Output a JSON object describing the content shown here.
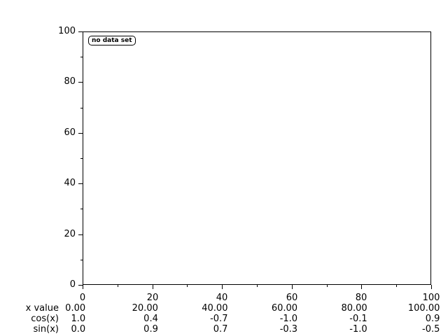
{
  "colors": {
    "background": "#ffffff",
    "foreground": "#000000"
  },
  "chart_data": {
    "type": "line",
    "title": "",
    "legend": "no data set",
    "legend_position": "top-left-inside",
    "grid": false,
    "xlim": [
      0,
      100
    ],
    "ylim": [
      0,
      100
    ],
    "x_ticks": [
      0,
      20,
      40,
      60,
      80,
      100
    ],
    "y_ticks": [
      0,
      20,
      40,
      60,
      80,
      100
    ],
    "minor_step": 10,
    "series": [],
    "table": {
      "rows": [
        {
          "label": "x value",
          "values": [
            "0.00",
            "20.00",
            "40.00",
            "60.00",
            "80.00",
            "100.00"
          ]
        },
        {
          "label": "cos(x)",
          "values": [
            "1.0",
            "0.4",
            "-0.7",
            "-1.0",
            "-0.1",
            "0.9"
          ]
        },
        {
          "label": "sin(x)",
          "values": [
            "0.0",
            "0.9",
            "0.7",
            "-0.3",
            "-1.0",
            "-0.5"
          ]
        }
      ]
    }
  }
}
